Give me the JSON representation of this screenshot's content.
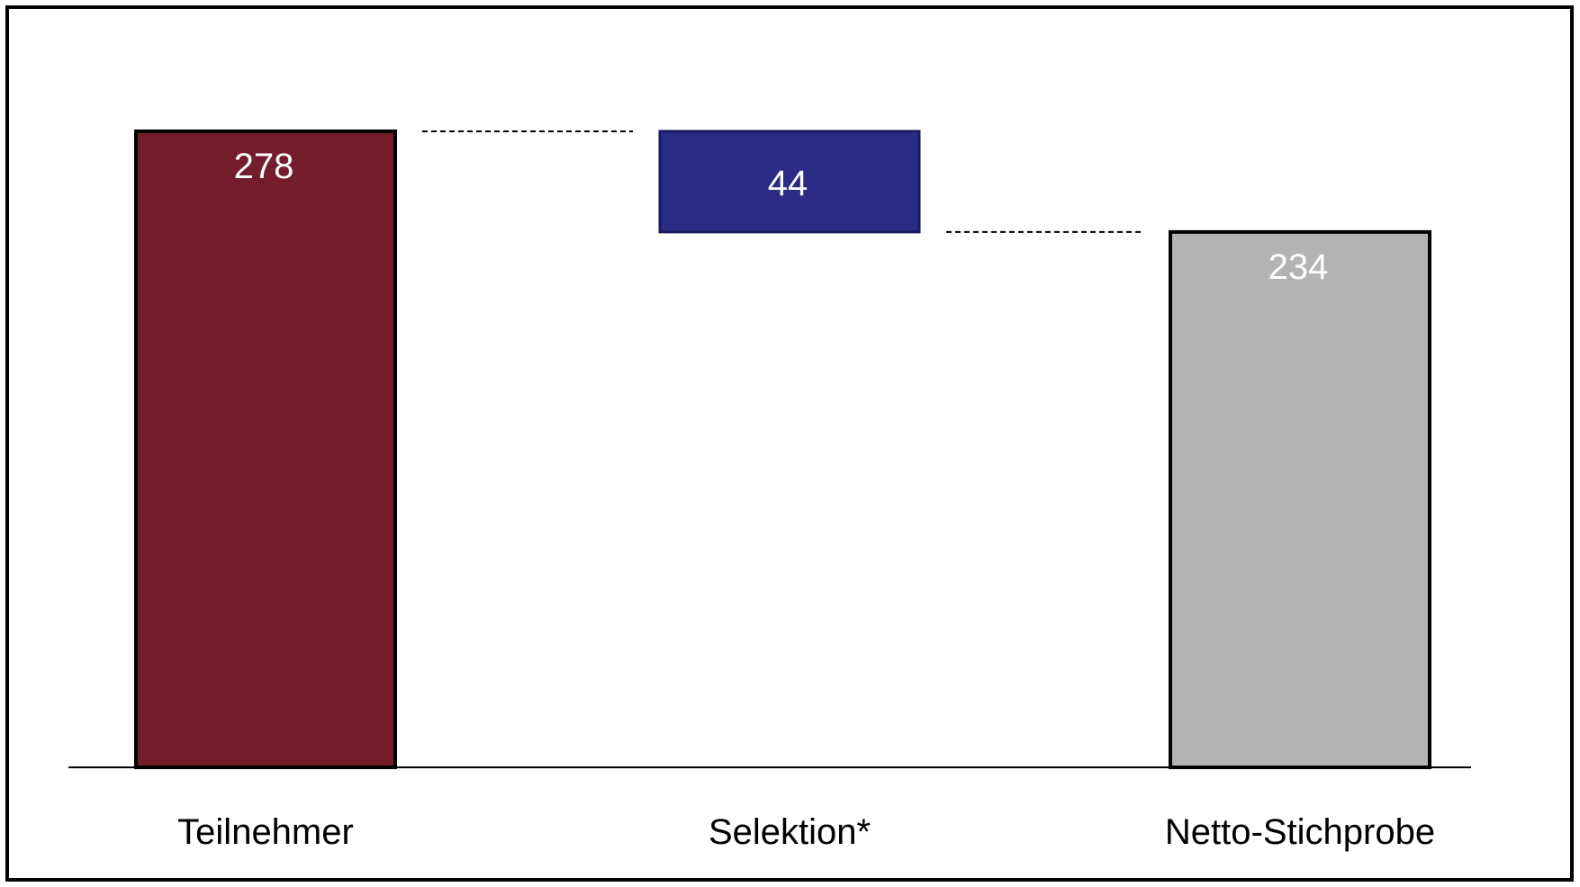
{
  "chart_data": {
    "type": "bar",
    "variant": "waterfall",
    "categories": [
      "Teilnehmer",
      "Selektion*",
      "Netto-Stichprobe"
    ],
    "values": [
      278,
      44,
      234
    ],
    "bar_kinds": [
      "total",
      "decrease",
      "total"
    ],
    "data_labels": [
      "278",
      "44",
      "234"
    ],
    "colors": [
      "#731d2b",
      "#2b2c85",
      "#b3b3b3"
    ],
    "ylim": [
      0,
      300
    ],
    "grid": false,
    "legend": "none",
    "connectors": "dashed"
  }
}
